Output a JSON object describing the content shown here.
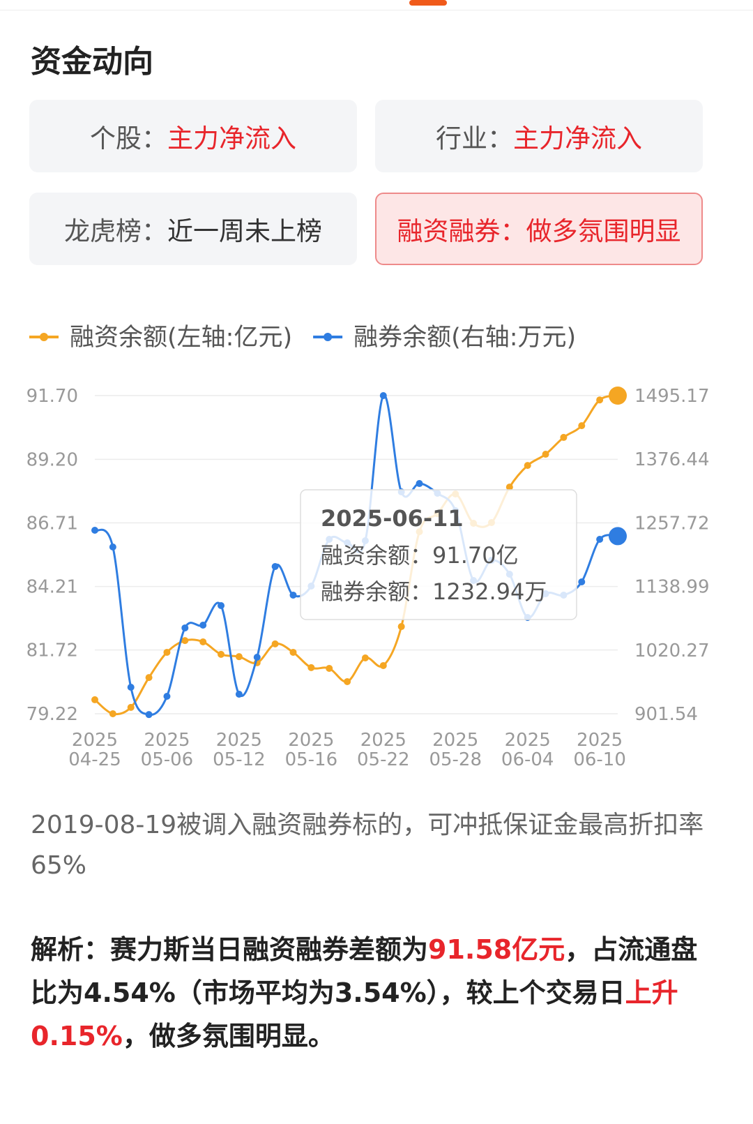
{
  "header": {
    "title": "资金动向"
  },
  "cards": [
    {
      "label": "个股：",
      "value": "主力净流入"
    },
    {
      "label": "行业：",
      "value": "主力净流入"
    },
    {
      "label": "龙虎榜：",
      "value": "近一周未上榜"
    },
    {
      "label": "融资融券：",
      "value": "做多氛围明显",
      "highlight": true
    }
  ],
  "chart_data": {
    "type": "line",
    "categories": [
      "2025-04-25",
      null,
      null,
      null,
      "2025-05-06",
      null,
      null,
      null,
      "2025-05-12",
      null,
      null,
      null,
      "2025-05-16",
      null,
      null,
      null,
      "2025-05-22",
      null,
      null,
      null,
      "2025-05-28",
      null,
      null,
      null,
      "2025-06-04",
      null,
      null,
      null,
      "2025-06-10",
      null
    ],
    "series": [
      {
        "name": "融资余额(左轴:亿元)",
        "color": "#f5a623",
        "axis": "y",
        "values": [
          79.77,
          79.22,
          79.47,
          80.64,
          81.63,
          82.09,
          82.04,
          81.55,
          81.46,
          81.22,
          81.96,
          81.63,
          81.03,
          81.0,
          80.48,
          81.41,
          81.11,
          82.64,
          86.36,
          87.07,
          87.84,
          86.69,
          86.72,
          88.11,
          88.96,
          89.4,
          90.06,
          90.52,
          91.53,
          91.7
        ]
      },
      {
        "name": "融券余额(右轴:万元)",
        "color": "#2f7de1",
        "axis": "y2",
        "values": [
          1243.9,
          1212.7,
          951.0,
          900.0,
          934.1,
          1061.7,
          1066.9,
          1103.3,
          938.0,
          1007.0,
          1176.2,
          1122.9,
          1139.8,
          1227.0,
          1220.5,
          1224.4,
          1495.17,
          1315.5,
          1331.1,
          1312.9,
          1280.4,
          1150.2,
          1187.9,
          1161.9,
          1081.2,
          1125.4,
          1122.9,
          1147.6,
          1227.0,
          1232.94
        ]
      }
    ],
    "ylim": [
      79.22,
      91.7
    ],
    "yticks": [
      79.22,
      81.72,
      84.21,
      86.71,
      {
        "value": 89.2,
        "label": "89.20"
      },
      {
        "value": 91.7,
        "label": "91.70"
      }
    ],
    "y2lim": [
      901.54,
      1495.17
    ],
    "y2ticks": [
      901.54,
      1020.27,
      1138.99,
      1257.72,
      1376.44,
      1495.17
    ],
    "grid": true,
    "tooltip": {
      "title": "2025-06-11",
      "rows": [
        {
          "label": "融资余额：",
          "value": "91.70亿"
        },
        {
          "label": "融券余额：",
          "value": "1232.94万"
        }
      ]
    }
  },
  "note": "2019-08-19被调入融资融券标的，可冲抵保证金最高折扣率65%",
  "analysis": [
    {
      "text": "解析：赛力斯当日融资融券差额为"
    },
    {
      "text": "91.58亿元",
      "highlight": true
    },
    {
      "text": "，占流通盘比为4.54%（市场平均为3.54%），较上个交易日"
    },
    {
      "text": "上升0.15%",
      "highlight": true
    },
    {
      "text": "，做多氛围明显。"
    }
  ]
}
